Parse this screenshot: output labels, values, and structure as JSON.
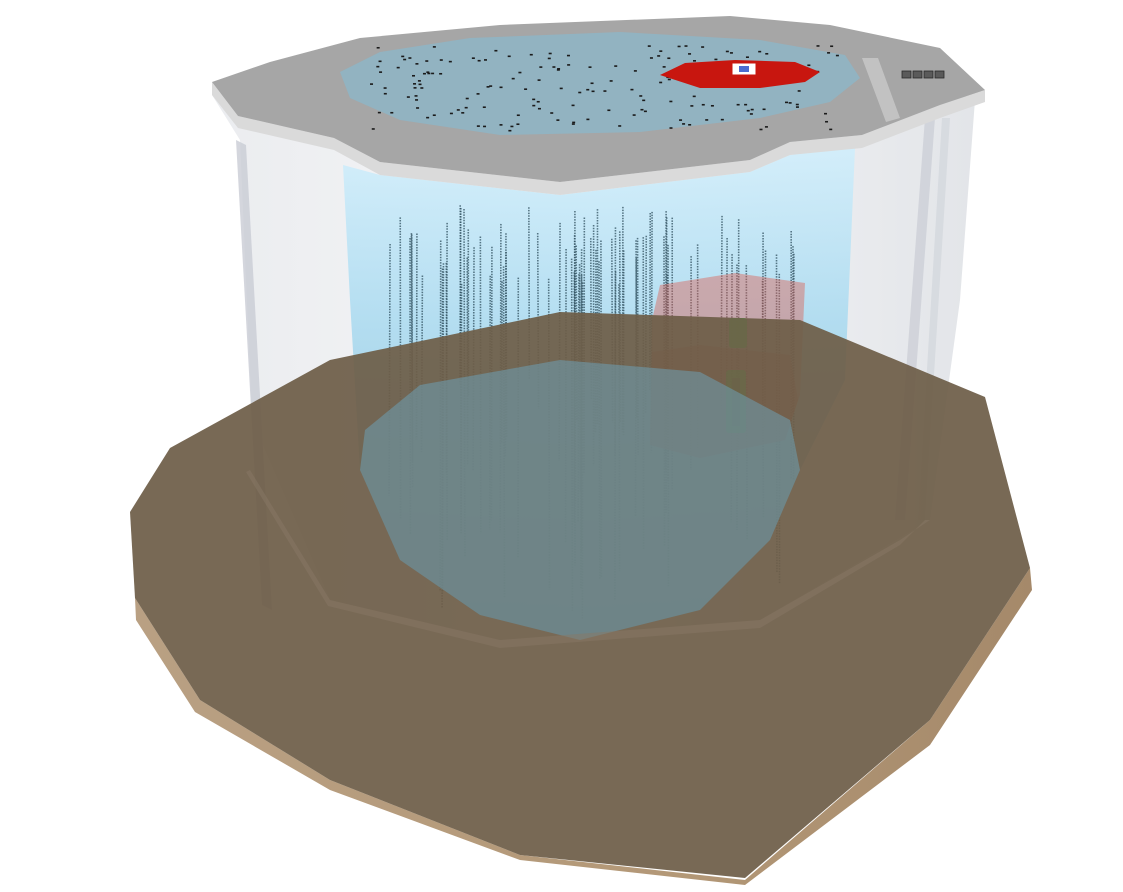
{
  "scene": {
    "string_count": 86,
    "surface_pit_count": 4
  },
  "colors": {
    "background": "#ffffff",
    "bedrock_top": "#71624f",
    "bedrock_side": "#b69c7c",
    "bedrock_side_dark": "#a58a6a",
    "ice_cap_top": "#a5a5a5",
    "ice_cap_side": "#d4d4d4",
    "outer_cylinder": "#d8dbe0",
    "inner_volume": "#9fd0e8",
    "inner_volume_deep": "#6d9fb3",
    "sensor_string": "#2f4f5e",
    "surface_marker": "#1a1a1a",
    "red_surface_array": "#c8160f",
    "red_volume": "#dd5a4c",
    "green_module": "#2ee84a",
    "hatch": "#4b6cd1"
  }
}
